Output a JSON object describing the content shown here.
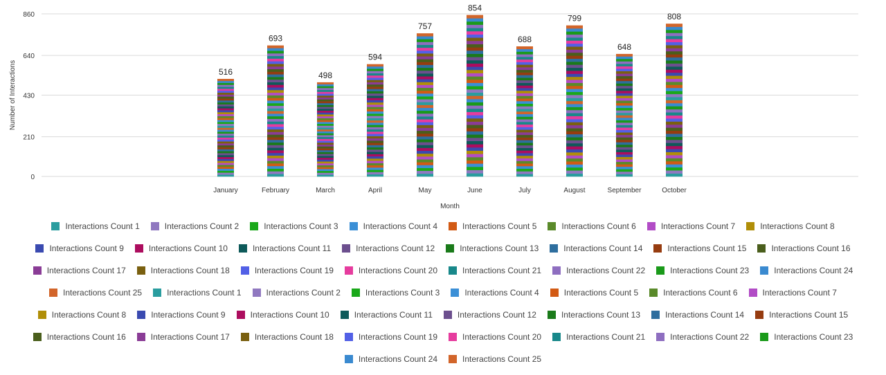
{
  "chart_data": {
    "type": "bar",
    "stacked": true,
    "xlabel": "Month",
    "ylabel": "Number of Interactions",
    "ylim": [
      0,
      860
    ],
    "yticks": [
      0,
      210,
      430,
      640,
      860
    ],
    "categories": [
      "January",
      "February",
      "March",
      "April",
      "May",
      "June",
      "July",
      "August",
      "September",
      "October"
    ],
    "totals": [
      516,
      693,
      498,
      594,
      757,
      854,
      688,
      799,
      648,
      808
    ],
    "grid": true,
    "legend_position": "bottom",
    "series_names": [
      "Interactions Count 1",
      "Interactions Count 2",
      "Interactions Count 3",
      "Interactions Count 4",
      "Interactions Count 5",
      "Interactions Count 6",
      "Interactions Count 7",
      "Interactions Count 8",
      "Interactions Count 9",
      "Interactions Count 10",
      "Interactions Count 11",
      "Interactions Count 12",
      "Interactions Count 13",
      "Interactions Count 14",
      "Interactions Count 15",
      "Interactions Count 16",
      "Interactions Count 17",
      "Interactions Count 18",
      "Interactions Count 19",
      "Interactions Count 20",
      "Interactions Count 21",
      "Interactions Count 22",
      "Interactions Count 23",
      "Interactions Count 24",
      "Interactions Count 25",
      "Interactions Count 1",
      "Interactions Count 2",
      "Interactions Count 3",
      "Interactions Count 4",
      "Interactions Count 5",
      "Interactions Count 6",
      "Interactions Count 7",
      "Interactions Count 8",
      "Interactions Count 9",
      "Interactions Count 10",
      "Interactions Count 11",
      "Interactions Count 12",
      "Interactions Count 13",
      "Interactions Count 14",
      "Interactions Count 15",
      "Interactions Count 16",
      "Interactions Count 17",
      "Interactions Count 18",
      "Interactions Count 19",
      "Interactions Count 20",
      "Interactions Count 21",
      "Interactions Count 22",
      "Interactions Count 23",
      "Interactions Count 24",
      "Interactions Count 25"
    ],
    "colors": [
      "#2a9d9f",
      "#9078c0",
      "#1aa81a",
      "#3b8fd6",
      "#d25a14",
      "#5a8a2a",
      "#b24cc6",
      "#b08e08",
      "#3a4ab0",
      "#ac0d5e",
      "#0e5a5a",
      "#6c4f8e",
      "#1a7a1a",
      "#2e6e9e",
      "#963c10",
      "#4a5e1c",
      "#8a3c96",
      "#7a6010",
      "#5260e6",
      "#e63c9e",
      "#18888a",
      "#8e6ec0",
      "#1a9a1a",
      "#3a8ad0",
      "#d2652a",
      "#2a9d9f",
      "#9078c0",
      "#1aa81a",
      "#3b8fd6",
      "#d25a14",
      "#5a8a2a",
      "#b24cc6",
      "#b08e08",
      "#3a4ab0",
      "#ac0d5e",
      "#0e5a5a",
      "#6c4f8e",
      "#1a7a1a",
      "#2e6e9e",
      "#963c10",
      "#4a5e1c",
      "#8a3c96",
      "#7a6010",
      "#5260e6",
      "#e63c9e",
      "#18888a",
      "#8e6ec0",
      "#1a9a1a",
      "#3a8ad0",
      "#d2652a"
    ]
  }
}
